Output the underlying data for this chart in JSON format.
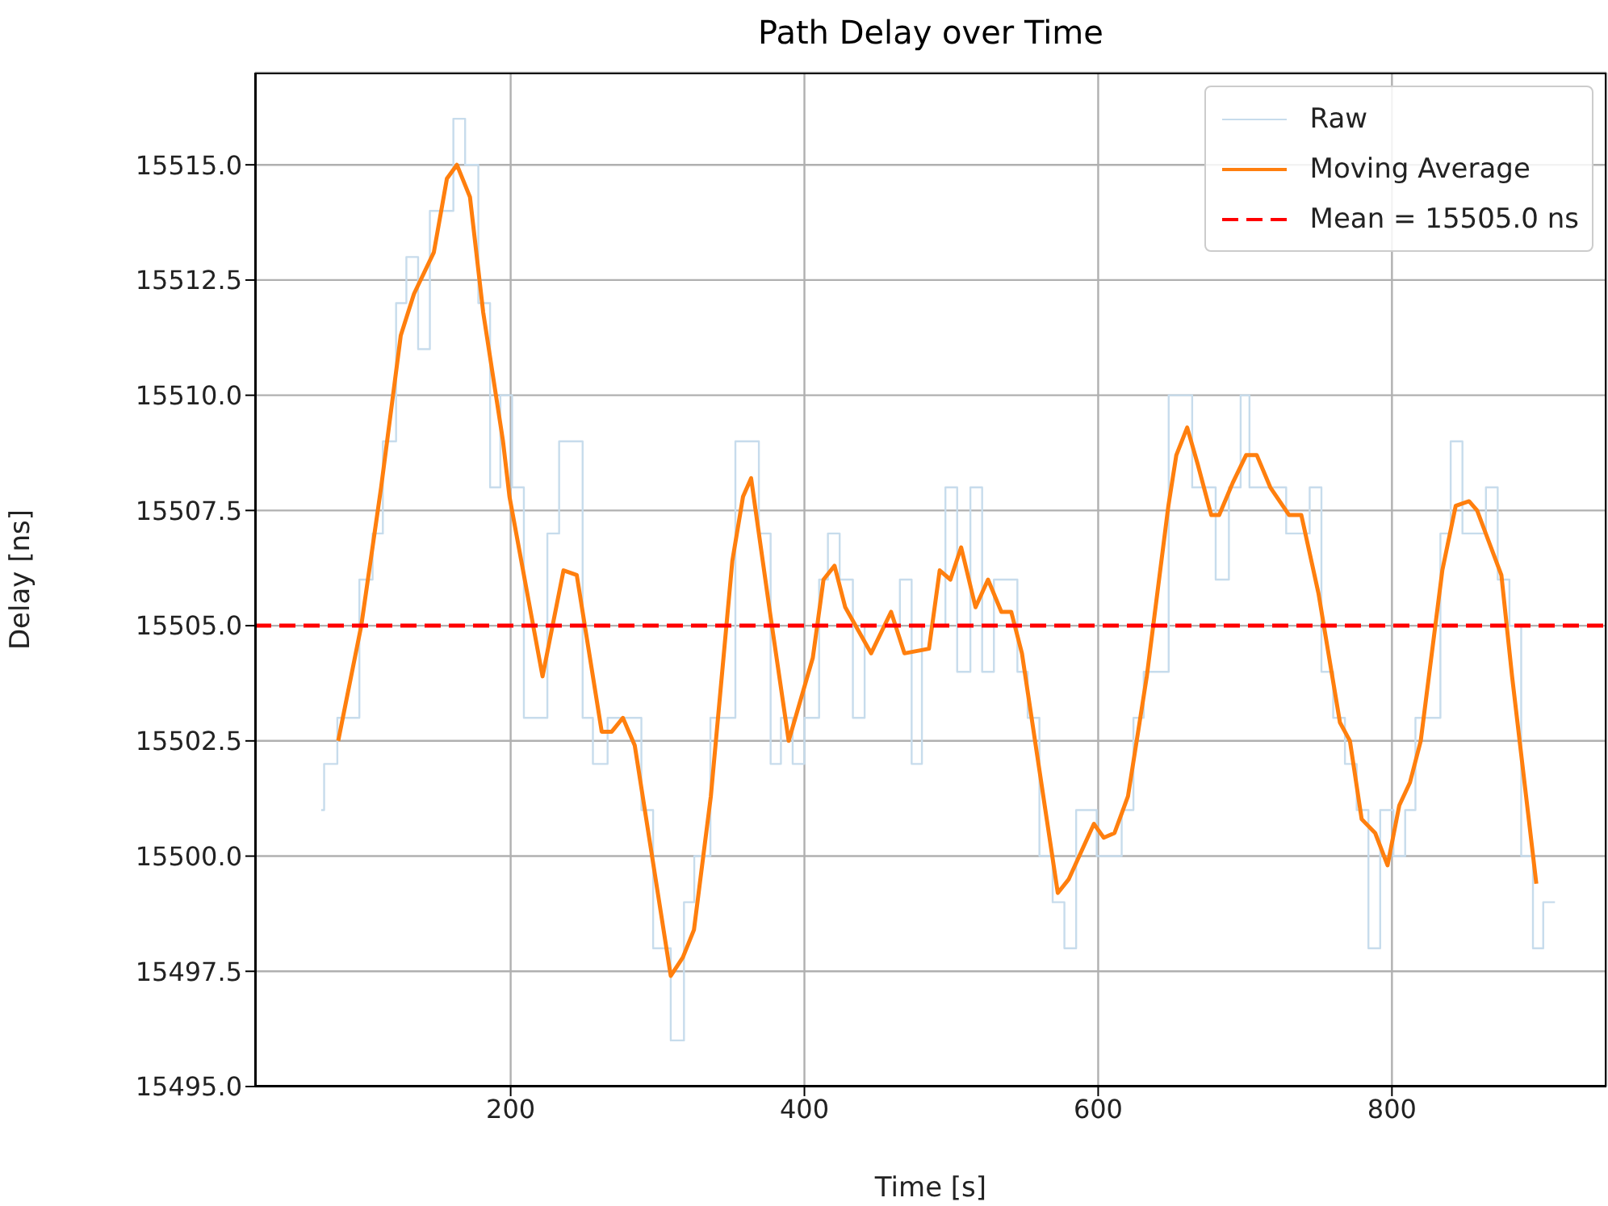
{
  "chart_data": {
    "type": "line",
    "title": "Path Delay over Time",
    "xlabel": "Time [s]",
    "ylabel": "Delay [ns]",
    "xlim": [
      26,
      946
    ],
    "xticks": [
      200,
      400,
      600,
      800
    ],
    "ylim": [
      15495,
      15517
    ],
    "yticks": [
      {
        "value": 15495,
        "label": "15495.0"
      },
      {
        "value": 15497.5,
        "label": "15497.5"
      },
      {
        "value": 15500,
        "label": "15500.0"
      },
      {
        "value": 15502.5,
        "label": "15502.5"
      },
      {
        "value": 15505,
        "label": "15505.0"
      },
      {
        "value": 15507.5,
        "label": "15507.5"
      },
      {
        "value": 15510,
        "label": "15510.0"
      },
      {
        "value": 15512.5,
        "label": "15512.5"
      },
      {
        "value": 15515,
        "label": "15515.0"
      }
    ],
    "grid": true,
    "legend": "top right",
    "marker": "none",
    "series": [
      {
        "name": "Raw",
        "type": "step",
        "color": "#c7dcec",
        "x": [
          71,
          73,
          82,
          97,
          106,
          113,
          122,
          129,
          137,
          145,
          161,
          169,
          178,
          186,
          193,
          201,
          209,
          225,
          233,
          249,
          256,
          266,
          289,
          297,
          309,
          318,
          325,
          336,
          353,
          369,
          377,
          384,
          392,
          400,
          410,
          416,
          424,
          433,
          441,
          465,
          473,
          480,
          496,
          504,
          513,
          521,
          529,
          545,
          552,
          560,
          569,
          577,
          585,
          599,
          616,
          624,
          631,
          648,
          664,
          680,
          689,
          697,
          703,
          728,
          744,
          752,
          760,
          768,
          776,
          784,
          792,
          801,
          809,
          816,
          833,
          840,
          848,
          864,
          872,
          880,
          888,
          896,
          903,
          911
        ],
        "values": [
          15501,
          15502,
          15503,
          15506,
          15507,
          15509,
          15512,
          15513,
          15511,
          15514,
          15516,
          15515,
          15512,
          15508,
          15510,
          15508,
          15503,
          15507,
          15509,
          15503,
          15502,
          15503,
          15501,
          15498,
          15496,
          15499,
          15500,
          15503,
          15509,
          15507,
          15502,
          15503,
          15502,
          15503,
          15506,
          15507,
          15506,
          15503,
          15505,
          15506,
          15502,
          15505,
          15508,
          15504,
          15508,
          15504,
          15506,
          15504,
          15503,
          15500,
          15499,
          15498,
          15501,
          15500,
          15501,
          15503,
          15504,
          15510,
          15508,
          15506,
          15508,
          15510,
          15508,
          15507,
          15508,
          15504,
          15503,
          15502,
          15501,
          15498,
          15501,
          15500,
          15501,
          15503,
          15507,
          15509,
          15507,
          15508,
          15506,
          15505,
          15500,
          15498,
          15499,
          15499
        ]
      },
      {
        "name": "Moving Average",
        "color": "#ff7f0e",
        "x": [
          82.6,
          98.3,
          111.8,
          125.2,
          134.2,
          147.7,
          156.6,
          163.4,
          172.3,
          181.3,
          194.8,
          199.2,
          221.7,
          236,
          245,
          262,
          268.8,
          276.4,
          284.5,
          309,
          317.2,
          324.8,
          336.3,
          350.9,
          358.2,
          363.7,
          376.5,
          389.3,
          405.7,
          413,
          420.5,
          427.8,
          445.4,
          459,
          468.1,
          484.8,
          492.1,
          499.4,
          506.7,
          516.5,
          525,
          534.1,
          540.8,
          548.1,
          572.5,
          580,
          597.1,
          603.8,
          611.1,
          620.3,
          633.1,
          647.8,
          653.2,
          660.6,
          667.8,
          677,
          682.4,
          691.6,
          700.7,
          708,
          717.2,
          730,
          738.3,
          750,
          764.6,
          771.4,
          779.4,
          788.6,
          797,
          805,
          812.3,
          819.6,
          834.3,
          843.4,
          852.5,
          858,
          874.5,
          881.8,
          898.3
        ],
        "values": [
          15502.5,
          15505,
          15508,
          15511.3,
          15512.2,
          15513.1,
          15514.7,
          15515,
          15514.3,
          15511.8,
          15509,
          15507.8,
          15503.9,
          15506.2,
          15506.1,
          15502.7,
          15502.7,
          15503,
          15502.4,
          15497.4,
          15497.8,
          15498.4,
          15501.3,
          15506.4,
          15507.8,
          15508.2,
          15505.3,
          15502.5,
          15504.3,
          15506,
          15506.3,
          15505.4,
          15504.4,
          15505.3,
          15504.4,
          15504.5,
          15506.2,
          15506,
          15506.7,
          15505.4,
          15506,
          15505.3,
          15505.3,
          15504.4,
          15499.2,
          15499.5,
          15500.7,
          15500.4,
          15500.5,
          15501.3,
          15503.9,
          15507.6,
          15508.7,
          15509.3,
          15508.5,
          15507.4,
          15507.4,
          15508.1,
          15508.7,
          15508.7,
          15508,
          15507.4,
          15507.4,
          15505.7,
          15502.9,
          15502.5,
          15500.8,
          15500.5,
          15499.8,
          15501.1,
          15501.6,
          15502.5,
          15506.2,
          15507.6,
          15507.7,
          15507.5,
          15506.1,
          15503.9,
          15499.4
        ]
      }
    ],
    "ref_lines": [
      {
        "axis": "y",
        "value": 15505,
        "label": "Mean = 15505.0 ns",
        "color": "#ff0000",
        "line_style": "dashed"
      }
    ]
  }
}
